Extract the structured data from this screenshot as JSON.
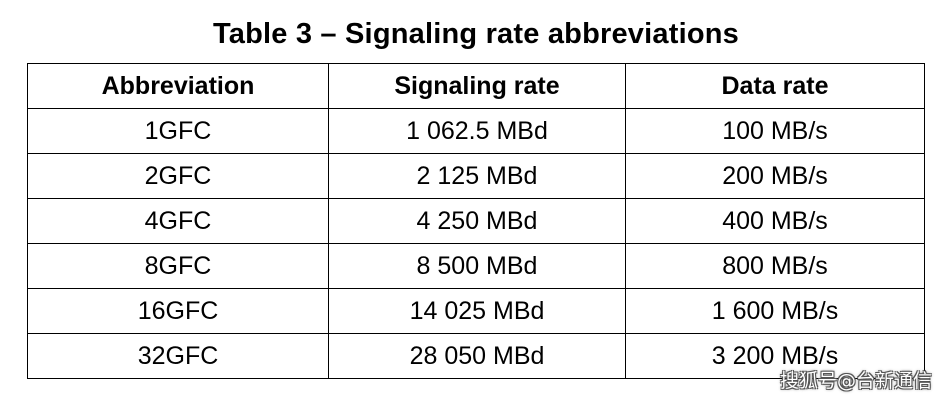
{
  "title": "Table 3 – Signaling rate abbreviations",
  "table": {
    "headers": [
      "Abbreviation",
      "Signaling rate",
      "Data rate"
    ],
    "rows": [
      [
        "1GFC",
        "1 062.5 MBd",
        "100 MB/s"
      ],
      [
        "2GFC",
        "2 125 MBd",
        "200 MB/s"
      ],
      [
        "4GFC",
        "4 250 MBd",
        "400 MB/s"
      ],
      [
        "8GFC",
        "8 500 MBd",
        "800 MB/s"
      ],
      [
        "16GFC",
        "14 025 MBd",
        "1 600 MB/s"
      ],
      [
        "32GFC",
        "28 050 MBd",
        "3 200 MB/s"
      ]
    ]
  },
  "watermark": "搜狐号@台新通信"
}
